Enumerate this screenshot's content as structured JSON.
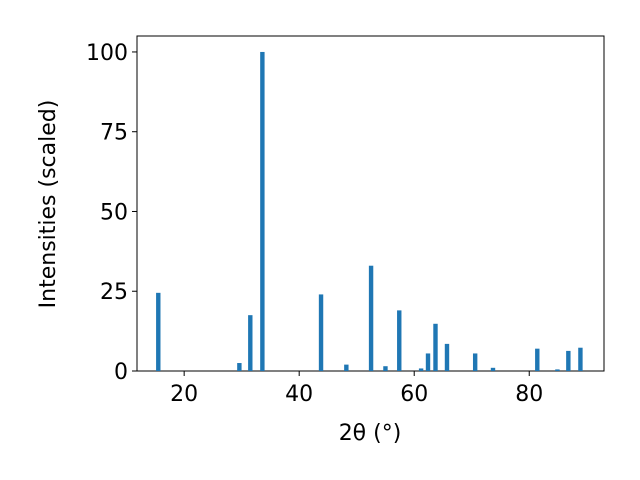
{
  "chart_data": {
    "type": "bar",
    "x": [
      15.5,
      29.6,
      31.5,
      33.6,
      43.8,
      48.2,
      52.5,
      55.0,
      57.4,
      61.2,
      62.4,
      63.7,
      65.7,
      70.6,
      73.7,
      81.4,
      84.9,
      86.8,
      88.9
    ],
    "values": [
      24.5,
      2.5,
      17.5,
      100,
      24,
      2,
      33,
      1.5,
      19,
      0.8,
      5.5,
      14.8,
      8.5,
      5.5,
      1,
      7,
      0.5,
      6.3,
      7.3
    ],
    "color": "#1f77b4",
    "xlabel": "2θ (°)",
    "ylabel": "Intensities (scaled)",
    "xlim": [
      11.8,
      93.0
    ],
    "ylim": [
      0,
      105
    ],
    "xticks": [
      20,
      40,
      60,
      80
    ],
    "yticks": [
      0,
      25,
      50,
      75,
      100
    ],
    "grid": false
  }
}
